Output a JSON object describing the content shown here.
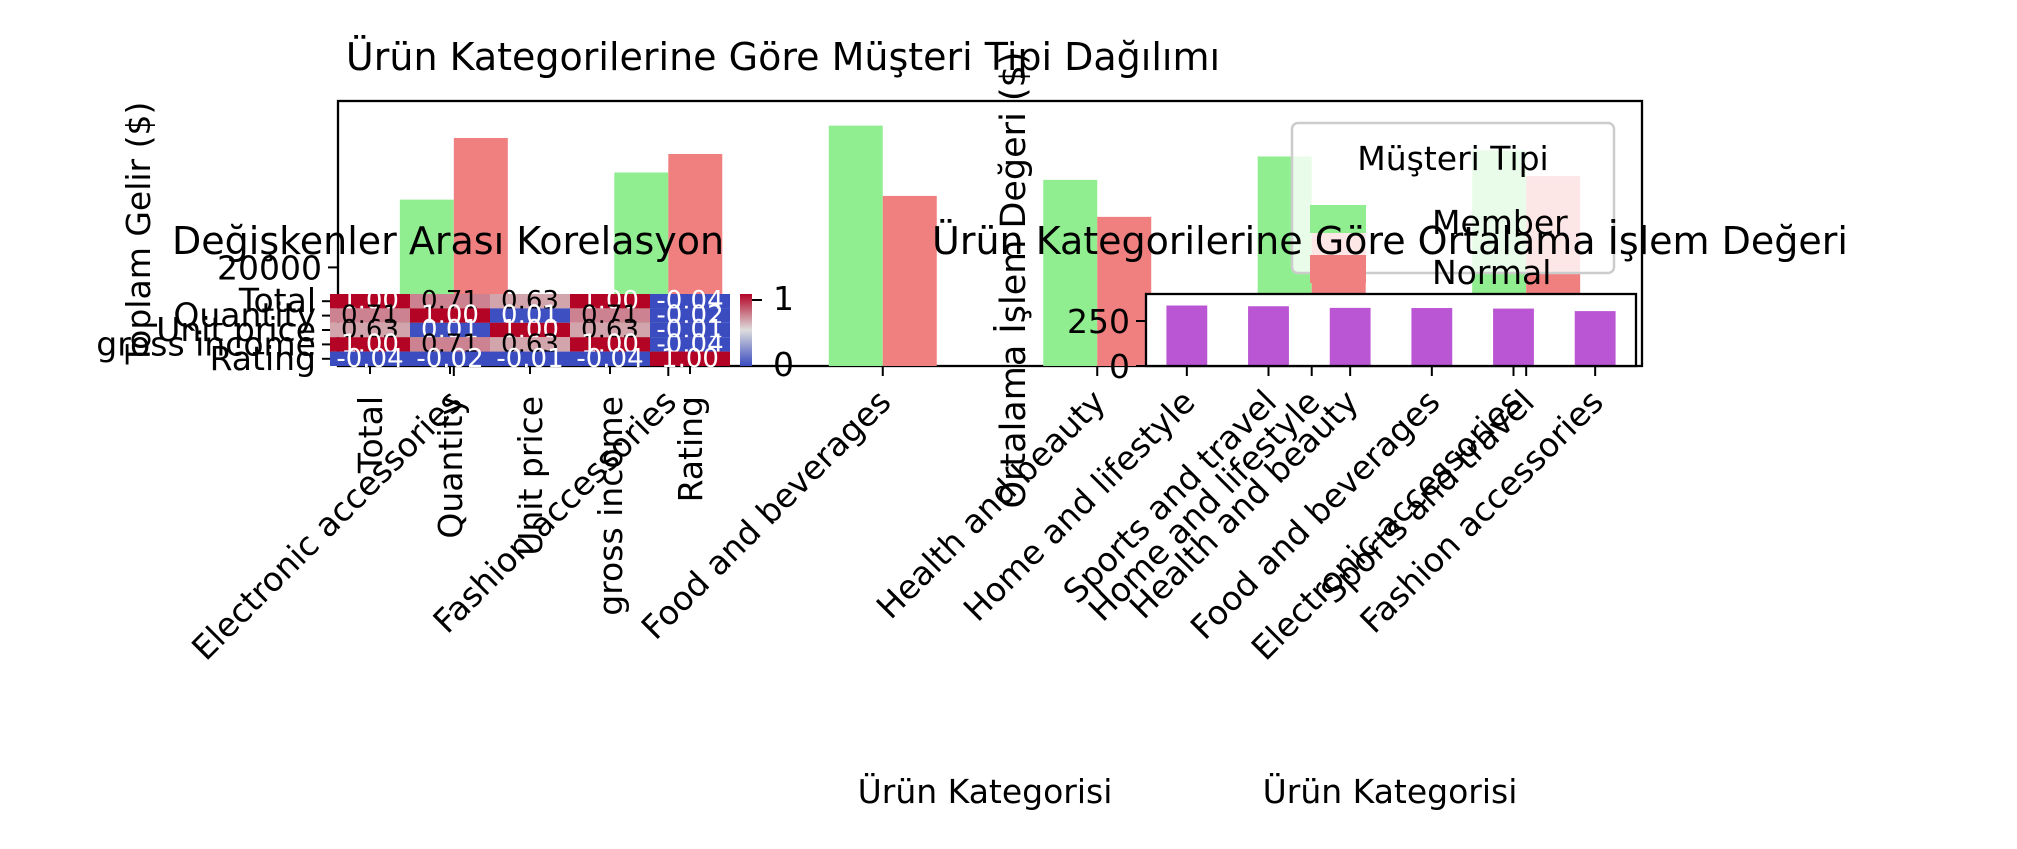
{
  "colors": {
    "member": "#90ee90",
    "normal": "#f08080",
    "avg_bar": "#ba55d3",
    "heat_low": "#3b4cc0",
    "heat_mid": "#dddddd",
    "heat_high": "#b40426"
  },
  "chart_data": [
    {
      "type": "bar",
      "title": "Ürün Kategorilerine Göre Müşteri Tipi Dağılımı",
      "xlabel": "Ürün Kategorisi",
      "ylabel": "Toplam Gelir ($)",
      "categories": [
        "Electronic accessories",
        "Fashion accessories",
        "Food and beverages",
        "Health and beauty",
        "Home and lifestyle",
        "Sports and travel"
      ],
      "series": [
        {
          "name": "Member",
          "values": [
            25500,
            27700,
            31500,
            27100,
            29000,
            29500
          ]
        },
        {
          "name": "Normal",
          "values": [
            30500,
            29200,
            25800,
            24100,
            24200,
            27400
          ]
        }
      ],
      "yticks": [
        20000
      ],
      "ylim": [
        12000,
        33500
      ],
      "legend": {
        "title": "Müşteri Tipi",
        "position": "upper right"
      }
    },
    {
      "type": "heatmap",
      "title": "Değişkenler Arası Korelasyon",
      "labels": [
        "Total",
        "Quantity",
        "Unit price",
        "gross income",
        "Rating"
      ],
      "values": [
        [
          1.0,
          0.71,
          0.63,
          1.0,
          -0.04
        ],
        [
          0.71,
          1.0,
          0.01,
          0.71,
          -0.02
        ],
        [
          0.63,
          0.01,
          1.0,
          0.63,
          -0.01
        ],
        [
          1.0,
          0.71,
          0.63,
          1.0,
          -0.04
        ],
        [
          -0.04,
          -0.02,
          -0.01,
          -0.04,
          1.0
        ]
      ],
      "colorbar_ticks": [
        "1",
        "0"
      ]
    },
    {
      "type": "bar",
      "title": "Ürün Kategorilerine Göre Ortalama İşlem Değeri",
      "xlabel": "Ürün Kategorisi",
      "ylabel": "Ortalama İşlem Değeri ($)",
      "categories": [
        "Home and lifestyle",
        "Sports and travel",
        "Health and beauty",
        "Food and beverages",
        "Electronic accessories",
        "Fashion accessories"
      ],
      "values": [
        336,
        332,
        323,
        322,
        319,
        305
      ],
      "yticks": [
        0,
        250
      ],
      "ylim": [
        0,
        400
      ]
    }
  ]
}
